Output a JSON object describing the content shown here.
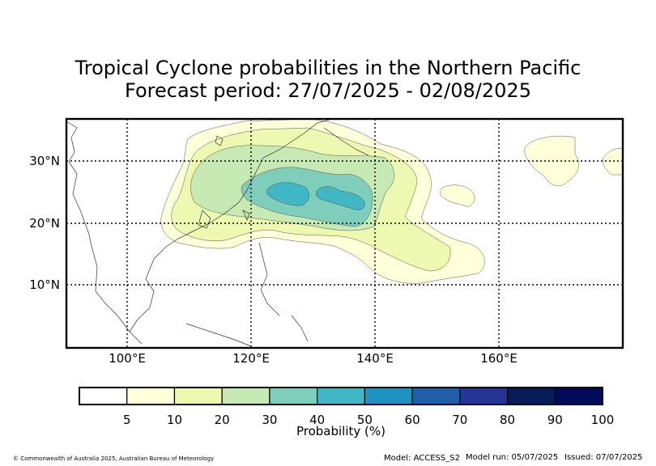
{
  "title": {
    "line1": "Tropical Cyclone probabilities in the Northern Pacific",
    "line2": "Forecast period: 27/07/2025 - 02/08/2025"
  },
  "map": {
    "lon_range": [
      90,
      180
    ],
    "lat_range": [
      0,
      37
    ],
    "lat_labels": [
      "30°N",
      "20°N",
      "10°N"
    ],
    "lon_labels": [
      "100°E",
      "120°E",
      "140°E",
      "160°E"
    ]
  },
  "colorbar": {
    "title": "Probability (%)",
    "ticks": [
      "5",
      "10",
      "20",
      "30",
      "40",
      "50",
      "60",
      "70",
      "80",
      "90",
      "100"
    ],
    "colors": [
      "#ffffff",
      "#ffffd9",
      "#edf8b1",
      "#c7e9b4",
      "#7fcdbb",
      "#41b6c4",
      "#1d91c0",
      "#225ea8",
      "#253494",
      "#081d58",
      "#020b59"
    ]
  },
  "footer": {
    "copyright": "© Commonwealth of Australia 2025, Australian Bureau of Meteorology",
    "model": "Model: ACCESS_S2",
    "model_run": "Model run: 05/07/2025",
    "issued": "Issued: 07/07/2025"
  }
}
